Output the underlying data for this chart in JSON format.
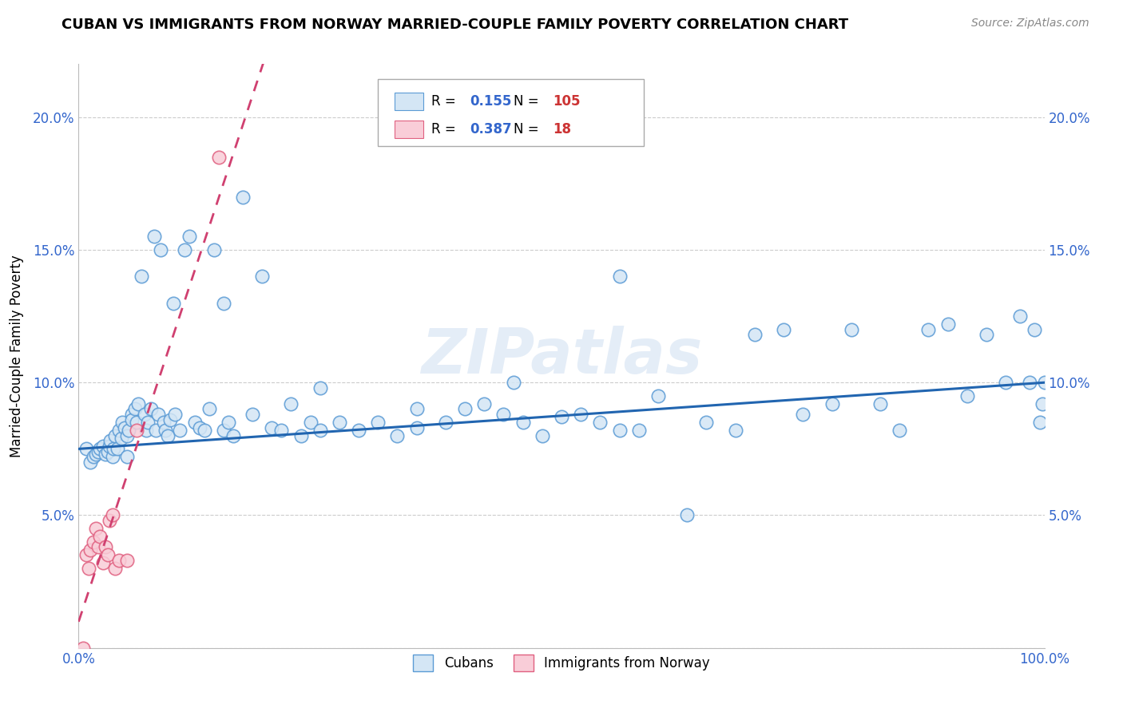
{
  "title": "CUBAN VS IMMIGRANTS FROM NORWAY MARRIED-COUPLE FAMILY POVERTY CORRELATION CHART",
  "source": "Source: ZipAtlas.com",
  "ylabel": "Married-Couple Family Poverty",
  "xlim": [
    0.0,
    1.0
  ],
  "ylim": [
    0.0,
    0.22
  ],
  "x_ticks": [
    0.0,
    0.2,
    0.4,
    0.6,
    0.8,
    1.0
  ],
  "x_tick_labels": [
    "0.0%",
    "",
    "",
    "",
    "",
    "100.0%"
  ],
  "y_ticks": [
    0.0,
    0.05,
    0.1,
    0.15,
    0.2
  ],
  "y_tick_labels": [
    "",
    "5.0%",
    "10.0%",
    "15.0%",
    "20.0%"
  ],
  "legend_cubans_R": "0.155",
  "legend_cubans_N": "105",
  "legend_norway_R": "0.387",
  "legend_norway_N": "18",
  "watermark": "ZIPatlas",
  "blue_fill": "#d4e6f5",
  "blue_edge": "#5b9bd5",
  "pink_fill": "#f9cdd8",
  "pink_edge": "#e06080",
  "blue_line": "#2165b0",
  "pink_line": "#d04070",
  "cubans_x": [
    0.008,
    0.012,
    0.015,
    0.018,
    0.02,
    0.022,
    0.025,
    0.028,
    0.03,
    0.032,
    0.033,
    0.035,
    0.036,
    0.038,
    0.04,
    0.042,
    0.044,
    0.045,
    0.048,
    0.05,
    0.05,
    0.052,
    0.055,
    0.055,
    0.058,
    0.06,
    0.062,
    0.065,
    0.068,
    0.07,
    0.072,
    0.075,
    0.078,
    0.08,
    0.082,
    0.085,
    0.088,
    0.09,
    0.092,
    0.095,
    0.098,
    0.1,
    0.105,
    0.11,
    0.115,
    0.12,
    0.125,
    0.13,
    0.135,
    0.14,
    0.15,
    0.155,
    0.16,
    0.17,
    0.18,
    0.19,
    0.2,
    0.21,
    0.22,
    0.23,
    0.24,
    0.25,
    0.27,
    0.29,
    0.31,
    0.33,
    0.35,
    0.38,
    0.4,
    0.42,
    0.44,
    0.46,
    0.48,
    0.5,
    0.52,
    0.54,
    0.56,
    0.58,
    0.6,
    0.63,
    0.65,
    0.68,
    0.7,
    0.73,
    0.75,
    0.78,
    0.8,
    0.83,
    0.85,
    0.88,
    0.9,
    0.92,
    0.94,
    0.96,
    0.975,
    0.985,
    0.99,
    0.995,
    0.998,
    1.0,
    0.56,
    0.45,
    0.35,
    0.25,
    0.15
  ],
  "cubans_y": [
    0.075,
    0.07,
    0.072,
    0.073,
    0.074,
    0.075,
    0.076,
    0.073,
    0.074,
    0.076,
    0.078,
    0.072,
    0.075,
    0.08,
    0.075,
    0.082,
    0.079,
    0.085,
    0.083,
    0.08,
    0.072,
    0.082,
    0.088,
    0.086,
    0.09,
    0.085,
    0.092,
    0.14,
    0.088,
    0.082,
    0.085,
    0.09,
    0.155,
    0.082,
    0.088,
    0.15,
    0.085,
    0.082,
    0.08,
    0.086,
    0.13,
    0.088,
    0.082,
    0.15,
    0.155,
    0.085,
    0.083,
    0.082,
    0.09,
    0.15,
    0.082,
    0.085,
    0.08,
    0.17,
    0.088,
    0.14,
    0.083,
    0.082,
    0.092,
    0.08,
    0.085,
    0.082,
    0.085,
    0.082,
    0.085,
    0.08,
    0.083,
    0.085,
    0.09,
    0.092,
    0.088,
    0.085,
    0.08,
    0.087,
    0.088,
    0.085,
    0.082,
    0.082,
    0.095,
    0.05,
    0.085,
    0.082,
    0.118,
    0.12,
    0.088,
    0.092,
    0.12,
    0.092,
    0.082,
    0.12,
    0.122,
    0.095,
    0.118,
    0.1,
    0.125,
    0.1,
    0.12,
    0.085,
    0.092,
    0.1,
    0.14,
    0.1,
    0.09,
    0.098,
    0.13
  ],
  "norway_x": [
    0.005,
    0.008,
    0.01,
    0.012,
    0.015,
    0.018,
    0.02,
    0.022,
    0.025,
    0.028,
    0.03,
    0.032,
    0.035,
    0.038,
    0.042,
    0.05,
    0.06,
    0.145
  ],
  "norway_y": [
    0.0,
    0.035,
    0.03,
    0.037,
    0.04,
    0.045,
    0.038,
    0.042,
    0.032,
    0.038,
    0.035,
    0.048,
    0.05,
    0.03,
    0.033,
    0.033,
    0.082,
    0.185
  ]
}
